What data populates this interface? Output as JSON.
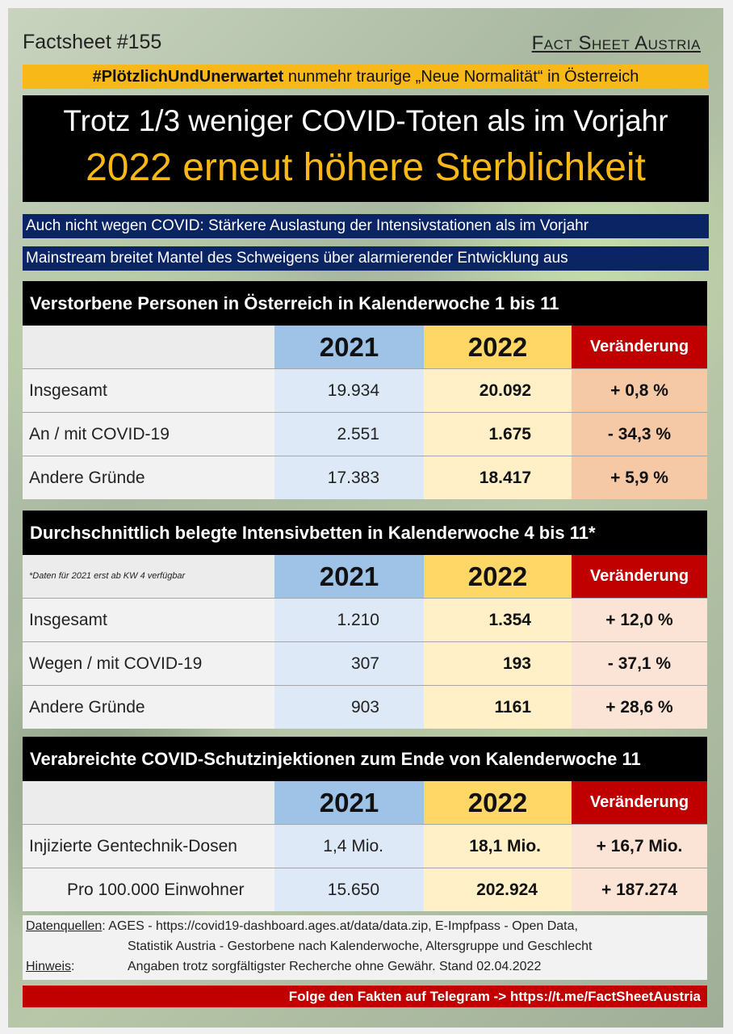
{
  "header": {
    "factsheet_number": "Factsheet #155",
    "brand": "Fact Sheet Austria"
  },
  "hashtag_bar": {
    "hashtag": "#PlötzlichUndUnerwartet",
    "text": " nunmehr traurige „Neue Normalität“ in Österreich"
  },
  "headline": {
    "line1": "Trotz 1/3 weniger COVID-Toten als im Vorjahr",
    "line2": "2022 erneut höhere Sterblichkeit"
  },
  "subheadlines": [
    "Auch nicht wegen COVID: Stärkere Auslastung der Intensivstationen als im Vorjahr",
    "Mainstream breitet Mantel des Schweigens über alarmierender Entwicklung aus"
  ],
  "colors": {
    "accent_yellow": "#f8b918",
    "navy": "#0b2464",
    "red": "#c00000",
    "col_2021": "#9fc3e6",
    "col_2022": "#fed767"
  },
  "tables": [
    {
      "title": "Verstorbene Personen in Österreich in Kalenderwoche 1 bis 11",
      "note": "",
      "col_2021": "2021",
      "col_2022": "2022",
      "col_change": "Veränderung",
      "rows": [
        {
          "label": "Insgesamt",
          "v2021": "19.934",
          "v2022": "20.092",
          "change": "+ 0,8 %"
        },
        {
          "label": "An / mit COVID-19",
          "v2021": "2.551",
          "v2022": "1.675",
          "change": "- 34,3 %"
        },
        {
          "label": "Andere Gründe",
          "v2021": "17.383",
          "v2022": "18.417",
          "change": "+ 5,9 %"
        }
      ]
    },
    {
      "title": "Durchschnittlich belegte Intensivbetten in Kalenderwoche 4 bis 11*",
      "note": "*Daten für 2021 erst ab KW 4 verfügbar",
      "col_2021": "2021",
      "col_2022": "2022",
      "col_change": "Veränderung",
      "rows": [
        {
          "label": "Insgesamt",
          "v2021": "1.210",
          "v2022": "1.354",
          "change": "+ 12,0 %"
        },
        {
          "label": "Wegen / mit COVID-19",
          "v2021": "307",
          "v2022": "193",
          "change": "- 37,1 %"
        },
        {
          "label": "Andere Gründe",
          "v2021": "903",
          "v2022": "1161",
          "change": "+ 28,6 %"
        }
      ]
    },
    {
      "title": "Verabreichte COVID-Schutzinjektionen zum Ende von Kalenderwoche 11",
      "note": "",
      "col_2021": "2021",
      "col_2022": "2022",
      "col_change": "Veränderung",
      "rows": [
        {
          "label": "Injizierte Gentechnik-Dosen",
          "v2021": "1,4 Mio.",
          "v2022": "18,1 Mio.",
          "change": "+ 16,7 Mio."
        },
        {
          "label": "Pro 100.000 Einwohner",
          "v2021": "15.650",
          "v2022": "202.924",
          "change": "+ 187.274"
        }
      ]
    }
  ],
  "sources": {
    "label_sources": "Datenquellen",
    "line1": ": AGES - https://covid19-dashboard.ages.at/data/data.zip, E-Impfpass - Open Data,",
    "line2": "Statistik Austria - Gestorbene nach Kalenderwoche, Altersgruppe und Geschlecht",
    "label_note": "Hinweis",
    "colon": ":",
    "line3": "Angaben trotz sorgfältigster Recherche ohne Gewähr. Stand 02.04.2022"
  },
  "footer": {
    "text": "Folge den Fakten auf Telegram  ->  https://t.me/FactSheetAustria"
  }
}
